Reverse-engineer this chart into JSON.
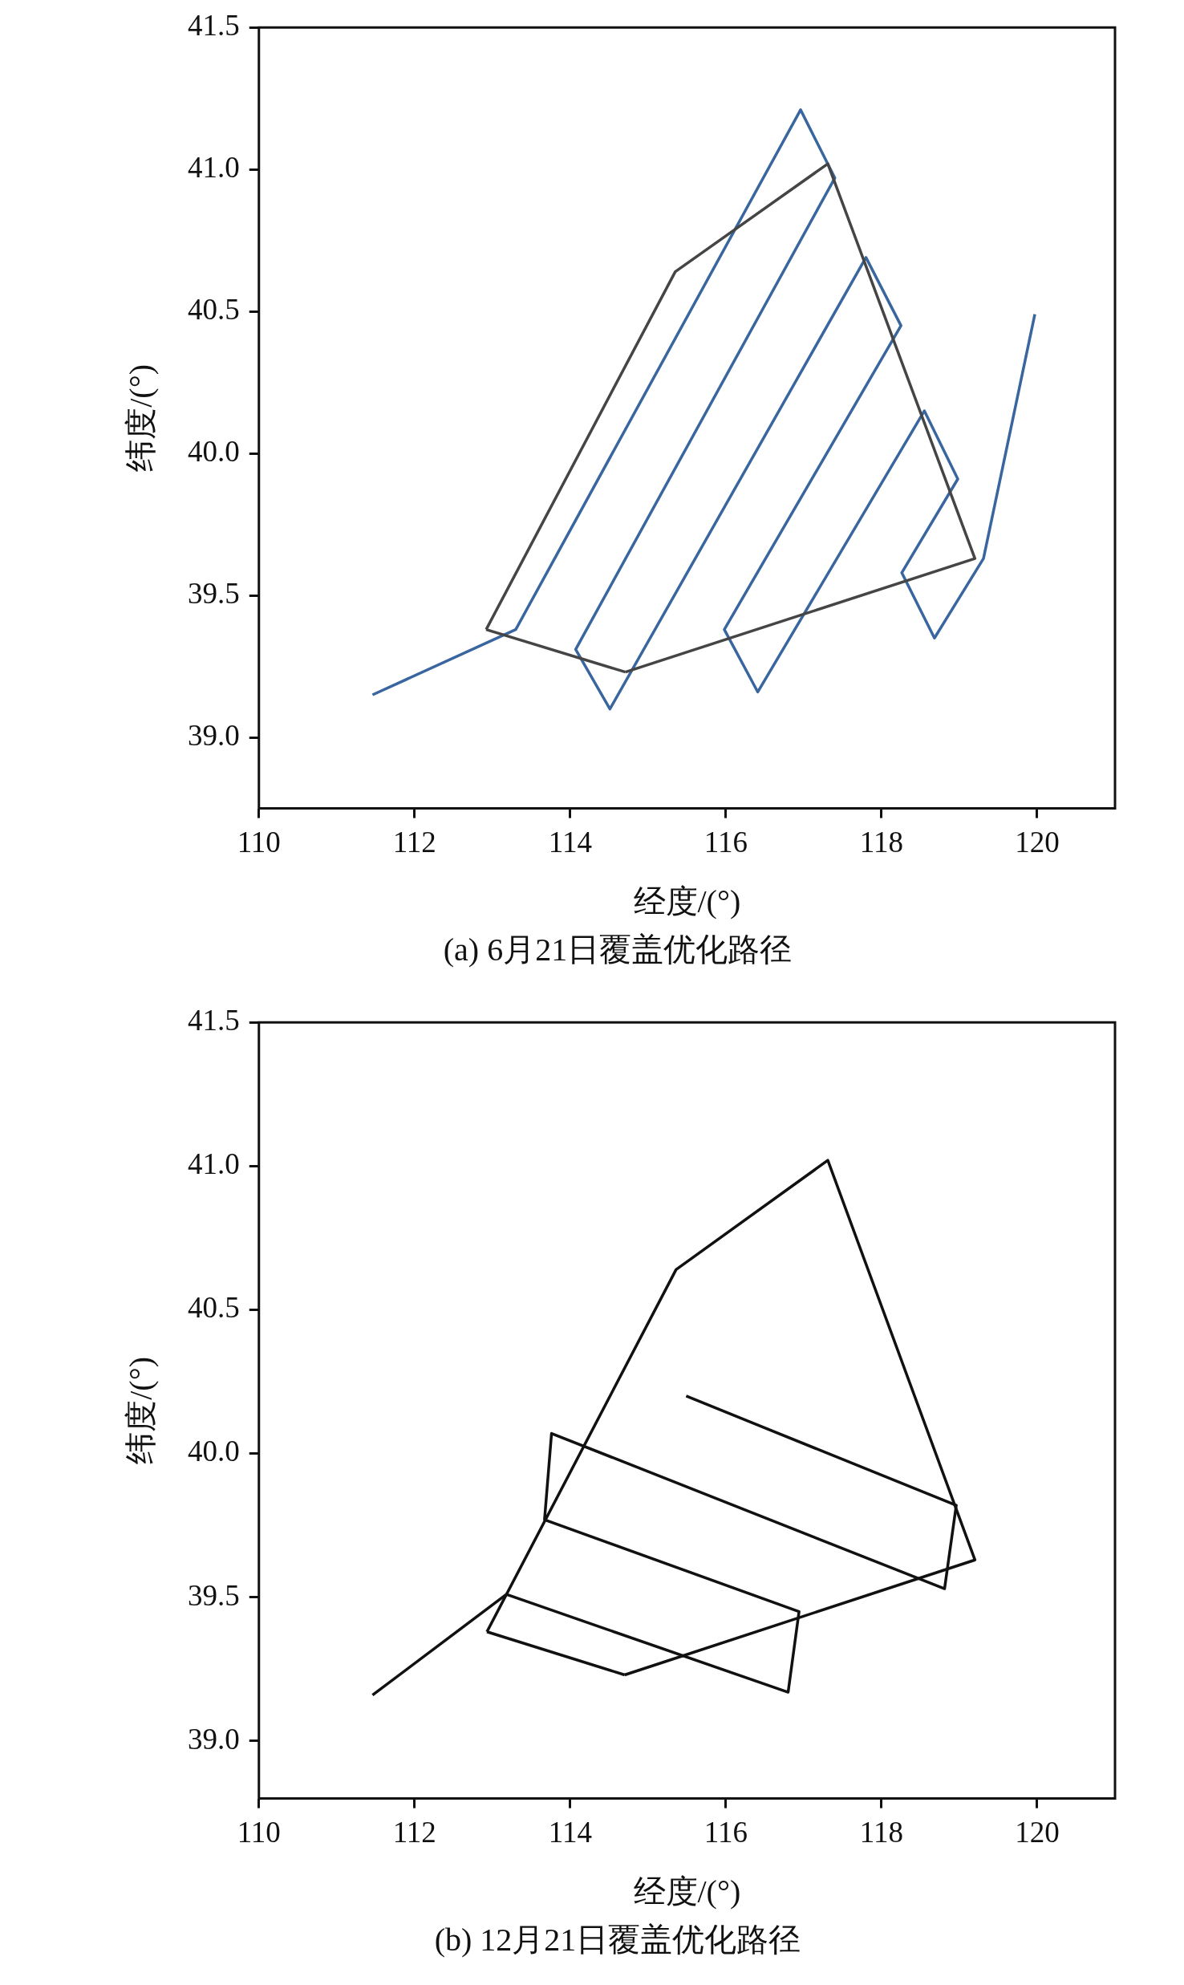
{
  "chart_data": [
    {
      "type": "line",
      "title": "(a) 6月21日覆盖优化路径",
      "xlabel": "经度/(°)",
      "ylabel": "纬度/(°)",
      "xlim": [
        110,
        121
      ],
      "xticks": [
        110,
        112,
        114,
        116,
        118,
        120
      ],
      "ylim": [
        38.75,
        41.5
      ],
      "yticks": [
        {
          "value": 39,
          "label": "39.0"
        },
        39.5,
        {
          "value": 40,
          "label": "40.0"
        },
        40.5,
        {
          "value": 41,
          "label": "41.0"
        },
        41.5
      ],
      "grid": false,
      "legend": false,
      "marker": "none",
      "line_style": "solid",
      "series": [
        {
          "color": "#454545",
          "x": [
            112.92,
            115.35,
            117.31,
            119.2,
            114.71
          ],
          "values": [
            39.38,
            40.64,
            41.02,
            39.63,
            39.23
          ]
        },
        {
          "color": "#454545",
          "x": [
            114.71,
            112.92
          ],
          "values": [
            39.23,
            39.38
          ]
        },
        {
          "color": "#3a66a0",
          "x": [
            111.46,
            113.3,
            116.96,
            117.4,
            114.07,
            114.51,
            117.8,
            118.25,
            115.98,
            116.41,
            118.55,
            118.98,
            118.26,
            118.68,
            119.31,
            119.97
          ],
          "values": [
            39.15,
            39.38,
            41.21,
            40.97,
            39.31,
            39.1,
            40.69,
            40.45,
            39.38,
            39.16,
            40.15,
            39.91,
            39.58,
            39.35,
            39.63,
            40.49
          ]
        }
      ]
    },
    {
      "type": "line",
      "title": "(b) 12月21日覆盖优化路径",
      "xlabel": "经度/(°)",
      "ylabel": "纬度/(°)",
      "xlim": [
        110,
        121
      ],
      "xticks": [
        110,
        112,
        114,
        116,
        118,
        120
      ],
      "ylim": [
        38.8,
        41.5
      ],
      "yticks": [
        {
          "value": 39,
          "label": "39.0"
        },
        39.5,
        {
          "value": 40,
          "label": "40.0"
        },
        40.5,
        {
          "value": 41,
          "label": "41.0"
        },
        41.5
      ],
      "grid": false,
      "legend": false,
      "marker": "none",
      "line_style": "solid",
      "series": [
        {
          "color": "#111111",
          "x": [
            112.93,
            115.36,
            117.31,
            119.2,
            114.7
          ],
          "values": [
            39.38,
            40.64,
            41.02,
            39.63,
            39.23
          ]
        },
        {
          "color": "#111111",
          "x": [
            114.7,
            112.93
          ],
          "values": [
            39.23,
            39.38
          ]
        },
        {
          "color": "#111111",
          "x": [
            111.46,
            113.18,
            116.8,
            116.94,
            113.67,
            113.76,
            118.81,
            118.96,
            115.49
          ],
          "values": [
            39.16,
            39.51,
            39.17,
            39.45,
            39.77,
            40.07,
            39.53,
            39.82,
            40.2
          ]
        }
      ]
    }
  ]
}
